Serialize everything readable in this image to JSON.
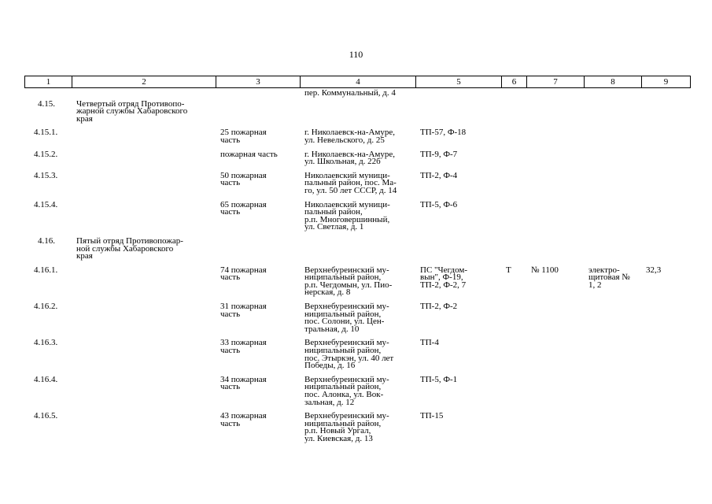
{
  "page_number": "110",
  "header": [
    "1",
    "2",
    "3",
    "4",
    "5",
    "6",
    "7",
    "8",
    "9"
  ],
  "rows": [
    {
      "type": "cont",
      "cells": [
        "",
        "",
        "",
        "пер. Коммунальный, д. 4",
        "",
        "",
        "",
        "",
        ""
      ]
    },
    {
      "type": "sec",
      "cells": [
        "4.15.",
        "Четвертый отряд Противопо-\nжарной службы Хабаровского\nкрая",
        "",
        "",
        "",
        "",
        "",
        "",
        ""
      ]
    },
    {
      "type": "item",
      "cells": [
        "4.15.1.",
        "",
        "25 пожарная\nчасть",
        "г. Николаевск-на-Амуре,\nул. Невельского, д. 25",
        "ТП-57, Ф-18",
        "",
        "",
        "",
        ""
      ]
    },
    {
      "type": "item",
      "cells": [
        "4.15.2.",
        "",
        "пожарная часть",
        "г. Николаевск-на-Амуре,\nул. Школьная, д. 22б",
        "ТП-9, Ф-7",
        "",
        "",
        "",
        ""
      ]
    },
    {
      "type": "item",
      "cells": [
        "4.15.3.",
        "",
        "50 пожарная\nчасть",
        "Николаевский муници-\nпальный район, пос. Ма-\nго, ул. 50 лет СССР, д. 14",
        "ТП-2, Ф-4",
        "",
        "",
        "",
        ""
      ]
    },
    {
      "type": "item",
      "cells": [
        "4.15.4.",
        "",
        "65 пожарная\nчасть",
        "Николаевский муници-\nпальный район,\nр.п. Многовершинный,\nул. Светлая, д. 1",
        "ТП-5, Ф-6",
        "",
        "",
        "",
        ""
      ]
    },
    {
      "type": "sec",
      "cells": [
        "4.16.",
        "Пятый отряд Противопожар-\nной службы Хабаровского\nкрая",
        "",
        "",
        "",
        "",
        "",
        "",
        ""
      ]
    },
    {
      "type": "item",
      "cells": [
        "4.16.1.",
        "",
        "74 пожарная\nчасть",
        "Верхнебуреинский му-\nниципальный район,\nр.п. Чегдомын, ул. Пио-\nнерская, д. 8",
        "ПС \"Чегдом-\nвын\", Ф-19,\nТП-2, Ф-2, 7",
        "Т",
        "№ 1100",
        "электро-\nщитовая №\n1, 2",
        "32,3"
      ]
    },
    {
      "type": "item",
      "cells": [
        "4.16.2.",
        "",
        "31 пожарная\nчасть",
        "Верхнебуреинский му-\nниципальный район,\nпос. Солони, ул. Цен-\nтральная, д. 10",
        "ТП-2, Ф-2",
        "",
        "",
        "",
        ""
      ]
    },
    {
      "type": "item",
      "cells": [
        "4.16.3.",
        "",
        "33 пожарная\nчасть",
        "Верхнебуреинский му-\nниципальный район,\nпос. Этыркэн, ул. 40 лет\nПобеды, д. 16",
        "ТП-4",
        "",
        "",
        "",
        ""
      ]
    },
    {
      "type": "item",
      "cells": [
        "4.16.4.",
        "",
        "34 пожарная\nчасть",
        "Верхнебуреинский му-\nниципальный район,\nпос. Алонка, ул. Вок-\nзальная, д. 12",
        "ТП-5, Ф-1",
        "",
        "",
        "",
        ""
      ]
    },
    {
      "type": "item",
      "cells": [
        "4.16.5.",
        "",
        "43 пожарная\nчасть",
        "Верхнебуреинский му-\nниципальный район,\nр.п. Новый Ургал,\nул. Киевская, д. 13",
        "ТП-15",
        "",
        "",
        "",
        ""
      ]
    }
  ]
}
